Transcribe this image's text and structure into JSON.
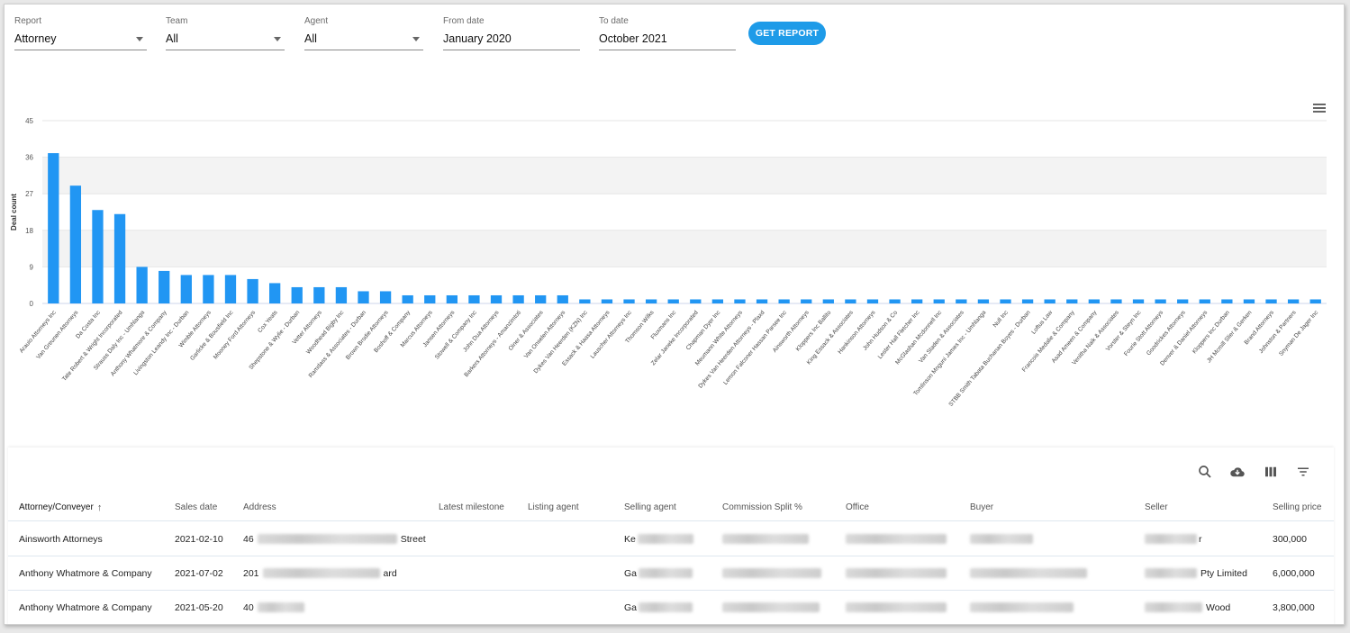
{
  "filters": {
    "report": {
      "label": "Report",
      "value": "Attorney"
    },
    "team": {
      "label": "Team",
      "value": "All"
    },
    "agent": {
      "label": "Agent",
      "value": "All"
    },
    "from_date": {
      "label": "From date",
      "value": "January 2020"
    },
    "to_date": {
      "label": "To date",
      "value": "October 2021"
    },
    "get_report_label": "GET REPORT"
  },
  "chart_data": {
    "type": "bar",
    "ylabel": "Deal count",
    "xlabel": "",
    "ylim": [
      0,
      45
    ],
    "yticks": [
      "0",
      "9",
      "18",
      "27",
      "36",
      "45"
    ],
    "bar_color": "#2196f3",
    "categories": [
      "Arauio Attorneys Inc",
      "Van Greunen Attorneys",
      "Da Costa Inc",
      "Tate Robert & Wright Incorporated",
      "Strauss Daly Inc - Umhlanga",
      "Anthony Whatmore & Company",
      "Livingston Leandy Inc - Durban",
      "Wimble Attorneys",
      "Garlicke & Bousfield Inc",
      "Mooney Ford Attorneys",
      "Cox Yeats",
      "Shepstone & Wylie - Durban",
      "Vetter Attorneys",
      "Woodhead Bigby Inc",
      "Ramdass & Associates - Durban",
      "Brown Brodie Attorneys",
      "Boshoff & Company",
      "Marcus Attorneys",
      "Jansen Attorneys",
      "Stowell & Company Inc",
      "John Dua Attorneys",
      "Barkers Attorneys - Amanzimtoti",
      "Oiner & Associates",
      "Van Onselen Attorneys",
      "Dykes Van Heerden (KZN) Inc",
      "Essack & Haasa Attorneys",
      "Lauscher Attorneys Inc",
      "Thomson Wilks",
      "Fluxmans Inc",
      "Zelar Janeke Incorporated",
      "Chapman Dyer Inc",
      "Meumann White Attorneys",
      "Dykes Van Heerden Attorneys - Plaxd",
      "Lemon Falconer Hassan Parsee Inc",
      "Ainsworth Attorneys",
      "Kloppers Inc Ballito",
      "King Essack & Associates",
      "Hankinson Attorneys",
      "John Hudson & Co",
      "Lester Hall Fletcher Inc",
      "McGlashan Mcdonnell Inc",
      "Van Staden & Associates",
      "Tomlinson Mnguni James Inc - Umhlanga",
      "Null Inc",
      "STBB Smith Tabata Buchanan Boyes - Durban",
      "Loftus Law",
      "Francois Medalie & Company",
      "Asad Ameen & Company",
      "Venitha Naik & Associates",
      "Vorster & Steyn Inc",
      "Fourie Stott Attorneys",
      "Goodrickes Attorneys",
      "Denver & Daniel Attorneys",
      "Kloppers Inc Durban",
      "JH Mcmill Slier & Gerken",
      "Brand Attorneys",
      "Johnston & Partners",
      "Snyman De Jager Inc"
    ],
    "values": [
      37,
      29,
      23,
      22,
      9,
      8,
      7,
      7,
      7,
      6,
      5,
      4,
      4,
      4,
      3,
      3,
      2,
      2,
      2,
      2,
      2,
      2,
      2,
      2,
      1,
      1,
      1,
      1,
      1,
      1,
      1,
      1,
      1,
      1,
      1,
      1,
      1,
      1,
      1,
      1,
      1,
      1,
      1,
      1,
      1,
      1,
      1,
      1,
      1,
      1,
      1,
      1,
      1,
      1,
      1,
      1,
      1,
      1
    ]
  },
  "table": {
    "columns": [
      "Attorney/Conveyer",
      "Sales date",
      "Address",
      "Latest milestone",
      "Listing agent",
      "Selling agent",
      "Commission Split %",
      "Office",
      "Buyer",
      "Seller",
      "Selling price"
    ],
    "sort_indicator": "↑",
    "rows": [
      {
        "attorney": "Ainsworth Attorneys",
        "sales_date": "2021-02-10",
        "address_pre": "46",
        "address_post": "Street",
        "selling_agent_pre": "Ke",
        "seller_post": "r",
        "price": "300,000"
      },
      {
        "attorney": "Anthony Whatmore & Company",
        "sales_date": "2021-07-02",
        "address_pre": "201",
        "address_post": "ard",
        "selling_agent_pre": "Ga",
        "seller_post": "Pty Limited",
        "price": "6,000,000"
      },
      {
        "attorney": "Anthony Whatmore & Company",
        "sales_date": "2021-05-20",
        "address_pre": "40",
        "address_post": "",
        "selling_agent_pre": "Ga",
        "seller_post": "Wood",
        "price": "3,800,000"
      }
    ]
  },
  "icons": {
    "toolbar": [
      "search-icon",
      "cloud-download-icon",
      "columns-icon",
      "filter-icon"
    ],
    "chart_menu": "hamburger-menu-icon"
  }
}
